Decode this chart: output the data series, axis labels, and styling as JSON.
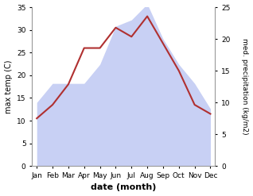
{
  "months": [
    "Jan",
    "Feb",
    "Mar",
    "Apr",
    "May",
    "Jun",
    "Jul",
    "Aug",
    "Sep",
    "Oct",
    "Nov",
    "Dec"
  ],
  "temperature": [
    10.5,
    13.5,
    18.0,
    26.0,
    26.0,
    30.5,
    28.5,
    33.0,
    27.0,
    21.0,
    13.5,
    11.5
  ],
  "precipitation": [
    10.0,
    13.0,
    13.0,
    13.0,
    16.0,
    22.0,
    23.0,
    25.5,
    20.0,
    16.0,
    13.0,
    9.0
  ],
  "temp_color": "#b03030",
  "precip_fill_color": "#c8d0f4",
  "temp_ylim": [
    0,
    35
  ],
  "precip_ylim": [
    0,
    25
  ],
  "temp_yticks": [
    0,
    5,
    10,
    15,
    20,
    25,
    30,
    35
  ],
  "precip_yticks": [
    0,
    5,
    10,
    15,
    20,
    25
  ],
  "ylabel_left": "max temp (C)",
  "ylabel_right": "med. precipitation (kg/m2)",
  "xlabel": "date (month)",
  "bg_color": "#ffffff",
  "line_width": 1.5
}
